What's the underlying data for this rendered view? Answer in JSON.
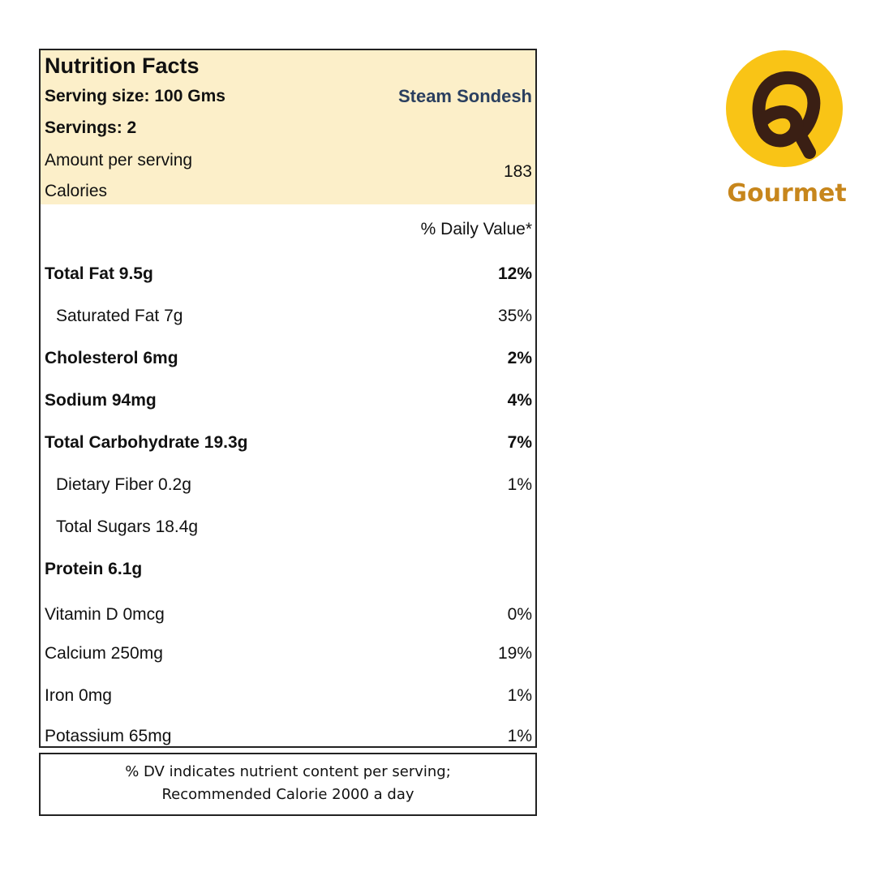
{
  "label": {
    "title": "Nutrition Facts",
    "serving_size": "Serving size: 100 Gms",
    "product_name": "Steam Sondesh",
    "servings": "Servings: 2",
    "amount_per_serving": "Amount per serving",
    "calories_label": "Calories",
    "calories_value": "183",
    "daily_value_header": "% Daily Value*",
    "nutrients": [
      {
        "name": "Total Fat 9.5g",
        "dv": "12%"
      },
      {
        "name": "Saturated Fat 7g",
        "dv": "35%"
      },
      {
        "name": "Cholesterol 6mg",
        "dv": "2%"
      },
      {
        "name": "Sodium 94mg",
        "dv": "4%"
      },
      {
        "name": "Total Carbohydrate 19.3g",
        "dv": "7%"
      },
      {
        "name": "Dietary Fiber 0.2g",
        "dv": "1%"
      },
      {
        "name": "Total Sugars 18.4g",
        "dv": ""
      },
      {
        "name": "Protein 6.1g",
        "dv": ""
      },
      {
        "name": "Vitamin D 0mcg",
        "dv": "0%"
      },
      {
        "name": "Calcium 250mg",
        "dv": "19%"
      },
      {
        "name": "Iron 0mg",
        "dv": "1%"
      },
      {
        "name": "Potassium 65mg",
        "dv": "1%"
      }
    ]
  },
  "footnote": {
    "line1": "% DV indicates nutrient content per serving;",
    "line2": "Recommended Calorie 2000 a day"
  },
  "logo": {
    "text": "Gourmet",
    "circle_color": "#f9c416",
    "mark_color": "#3a1f14"
  }
}
